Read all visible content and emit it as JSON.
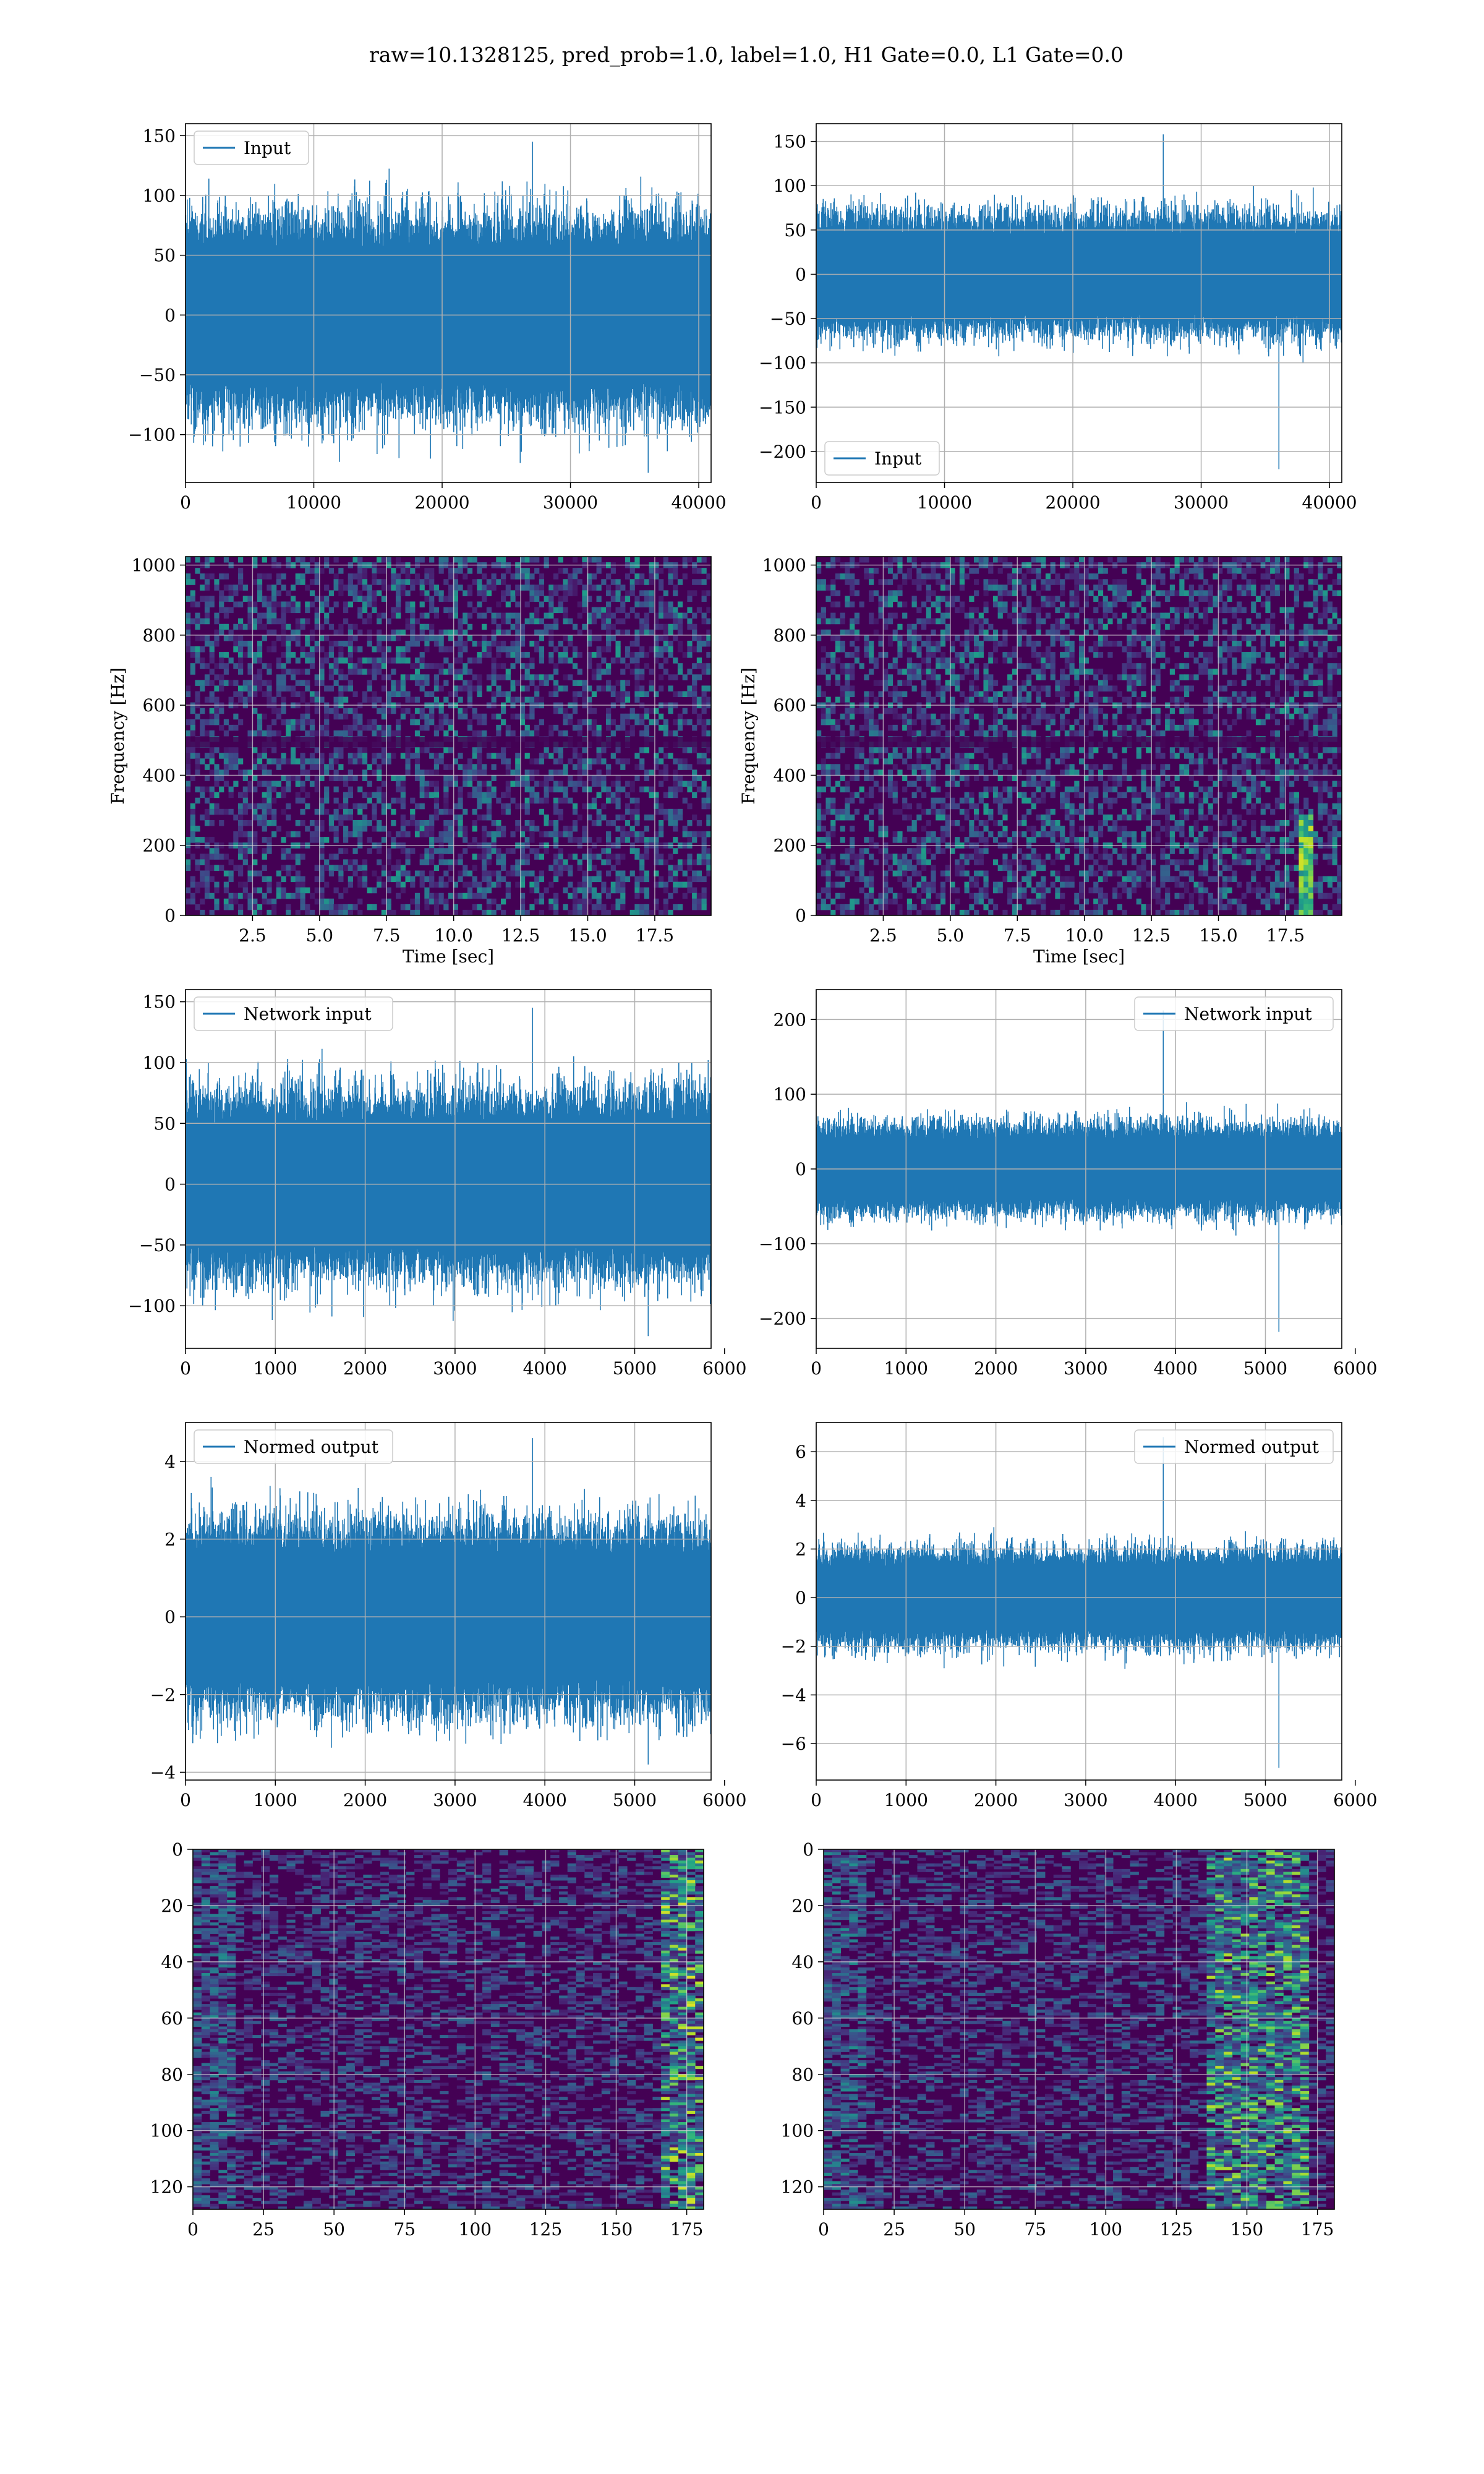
{
  "title": "raw=10.1328125, pred_prob=1.0, label=1.0, H1 Gate=0.0, L1 Gate=0.0",
  "colors": {
    "line": "#1f77b4",
    "grid": "#b0b0b0",
    "viridis_dark": "#440154",
    "viridis_mid": "#31688e",
    "viridis_teal": "#21918c",
    "viridis_green": "#5ec962",
    "viridis_yellow": "#fde725"
  },
  "chart_data": [
    {
      "id": "h1-input",
      "type": "line",
      "x_range": [
        0,
        40960
      ],
      "ylim": [
        -140,
        160
      ],
      "x_ticks": [
        0,
        10000,
        20000,
        30000,
        40000
      ],
      "x_tick_labels": [
        "0",
        "10000",
        "20000",
        "30000",
        "40000"
      ],
      "y_ticks": [
        -100,
        -50,
        0,
        50,
        100,
        150
      ],
      "y_tick_labels": [
        "−100",
        "−50",
        "0",
        "50",
        "100",
        "150"
      ],
      "xlabel": "",
      "ylabel": "",
      "legend": {
        "label": "Input",
        "loc": "upper-left"
      },
      "signal": {
        "amplitude_band": [
          -55,
          55
        ],
        "max": 145,
        "min": -132
      }
    },
    {
      "id": "l1-input",
      "type": "line",
      "x_range": [
        0,
        40960
      ],
      "ylim": [
        -235,
        170
      ],
      "x_ticks": [
        0,
        10000,
        20000,
        30000,
        40000
      ],
      "x_tick_labels": [
        "0",
        "10000",
        "20000",
        "30000",
        "40000"
      ],
      "y_ticks": [
        -200,
        -150,
        -100,
        -50,
        0,
        50,
        100,
        150
      ],
      "y_tick_labels": [
        "−200",
        "−150",
        "−100",
        "−50",
        "0",
        "50",
        "100",
        "150"
      ],
      "xlabel": "",
      "ylabel": "",
      "legend": {
        "label": "Input",
        "loc": "lower-left"
      },
      "signal": {
        "amplitude_band": [
          -45,
          45
        ],
        "max": 158,
        "min": -220
      }
    },
    {
      "id": "h1-spectrogram",
      "type": "heatmap",
      "x_range": [
        0,
        19.6
      ],
      "ylim": [
        0,
        1024
      ],
      "x_ticks": [
        2.5,
        5.0,
        7.5,
        10.0,
        12.5,
        15.0,
        17.5
      ],
      "x_tick_labels": [
        "2.5",
        "5.0",
        "7.5",
        "10.0",
        "12.5",
        "15.0",
        "17.5"
      ],
      "y_ticks": [
        0,
        200,
        400,
        600,
        800,
        1000
      ],
      "y_tick_labels": [
        "0",
        "200",
        "400",
        "600",
        "800",
        "1000"
      ],
      "xlabel": "Time [sec]",
      "ylabel": "Frequency [Hz]",
      "colormap": "viridis",
      "grid": true
    },
    {
      "id": "l1-spectrogram",
      "type": "heatmap",
      "x_range": [
        0,
        19.6
      ],
      "ylim": [
        0,
        1024
      ],
      "x_ticks": [
        2.5,
        5.0,
        7.5,
        10.0,
        12.5,
        15.0,
        17.5
      ],
      "x_tick_labels": [
        "2.5",
        "5.0",
        "7.5",
        "10.0",
        "12.5",
        "15.0",
        "17.5"
      ],
      "y_ticks": [
        0,
        200,
        400,
        600,
        800,
        1000
      ],
      "y_tick_labels": [
        "0",
        "200",
        "400",
        "600",
        "800",
        "1000"
      ],
      "xlabel": "Time [sec]",
      "ylabel": "Frequency [Hz]",
      "colormap": "viridis",
      "grid": true
    },
    {
      "id": "h1-network-input",
      "type": "line",
      "x_range": [
        0,
        5850
      ],
      "ylim": [
        -135,
        160
      ],
      "x_ticks": [
        0,
        1000,
        2000,
        3000,
        4000,
        5000,
        6000
      ],
      "x_tick_labels": [
        "0",
        "1000",
        "2000",
        "3000",
        "4000",
        "5000",
        "6000"
      ],
      "y_ticks": [
        -100,
        -50,
        0,
        50,
        100,
        150
      ],
      "y_tick_labels": [
        "−100",
        "−50",
        "0",
        "50",
        "100",
        "150"
      ],
      "xlabel": "",
      "ylabel": "",
      "legend": {
        "label": "Network input",
        "loc": "upper-left"
      },
      "signal": {
        "amplitude_band": [
          -50,
          50
        ],
        "max": 145,
        "min": -125
      }
    },
    {
      "id": "l1-network-input",
      "type": "line",
      "x_range": [
        0,
        5850
      ],
      "ylim": [
        -240,
        240
      ],
      "x_ticks": [
        0,
        1000,
        2000,
        3000,
        4000,
        5000,
        6000
      ],
      "x_tick_labels": [
        "0",
        "1000",
        "2000",
        "3000",
        "4000",
        "5000",
        "6000"
      ],
      "y_ticks": [
        -200,
        -100,
        0,
        100,
        200
      ],
      "y_tick_labels": [
        "−200",
        "−100",
        "0",
        "100",
        "200"
      ],
      "xlabel": "",
      "ylabel": "",
      "legend": {
        "label": "Network input",
        "loc": "upper-right"
      },
      "signal": {
        "amplitude_band": [
          -40,
          40
        ],
        "max": 212,
        "min": -218
      }
    },
    {
      "id": "h1-normed-output",
      "type": "line",
      "x_range": [
        0,
        5850
      ],
      "ylim": [
        -4.2,
        5.0
      ],
      "x_ticks": [
        0,
        1000,
        2000,
        3000,
        4000,
        5000,
        6000
      ],
      "x_tick_labels": [
        "0",
        "1000",
        "2000",
        "3000",
        "4000",
        "5000",
        "6000"
      ],
      "y_ticks": [
        -4,
        -2,
        0,
        2,
        4
      ],
      "y_tick_labels": [
        "−4",
        "−2",
        "0",
        "2",
        "4"
      ],
      "xlabel": "",
      "ylabel": "",
      "legend": {
        "label": "Normed output",
        "loc": "upper-left"
      },
      "signal": {
        "amplitude_band": [
          -1.6,
          1.6
        ],
        "max": 4.6,
        "min": -3.8
      }
    },
    {
      "id": "l1-normed-output",
      "type": "line",
      "x_range": [
        0,
        5850
      ],
      "ylim": [
        -7.5,
        7.2
      ],
      "x_ticks": [
        0,
        1000,
        2000,
        3000,
        4000,
        5000,
        6000
      ],
      "x_tick_labels": [
        "0",
        "1000",
        "2000",
        "3000",
        "4000",
        "5000",
        "6000"
      ],
      "y_ticks": [
        -6,
        -4,
        -2,
        0,
        2,
        4,
        6
      ],
      "y_tick_labels": [
        "−6",
        "−4",
        "−2",
        "0",
        "2",
        "4",
        "6"
      ],
      "xlabel": "",
      "ylabel": "",
      "legend": {
        "label": "Normed output",
        "loc": "upper-right"
      },
      "signal": {
        "amplitude_band": [
          -1.3,
          1.3
        ],
        "max": 6.6,
        "min": -7.0
      }
    },
    {
      "id": "h1-features",
      "type": "heatmap",
      "x_range": [
        0,
        181
      ],
      "ylim": [
        128,
        0
      ],
      "x_ticks": [
        0,
        25,
        50,
        75,
        100,
        125,
        150,
        175
      ],
      "x_tick_labels": [
        "0",
        "25",
        "50",
        "75",
        "100",
        "125",
        "150",
        "175"
      ],
      "y_ticks": [
        0,
        20,
        40,
        60,
        80,
        100,
        120
      ],
      "y_tick_labels": [
        "0",
        "20",
        "40",
        "60",
        "80",
        "100",
        "120"
      ],
      "xlabel": "",
      "ylabel": "",
      "colormap": "viridis",
      "grid": true
    },
    {
      "id": "l1-features",
      "type": "heatmap",
      "x_range": [
        0,
        181
      ],
      "ylim": [
        128,
        0
      ],
      "x_ticks": [
        0,
        25,
        50,
        75,
        100,
        125,
        150,
        175
      ],
      "x_tick_labels": [
        "0",
        "25",
        "50",
        "75",
        "100",
        "125",
        "150",
        "175"
      ],
      "y_ticks": [
        0,
        20,
        40,
        60,
        80,
        100,
        120
      ],
      "y_tick_labels": [
        "0",
        "20",
        "40",
        "60",
        "80",
        "100",
        "120"
      ],
      "xlabel": "",
      "ylabel": "",
      "colormap": "viridis",
      "grid": true
    }
  ]
}
